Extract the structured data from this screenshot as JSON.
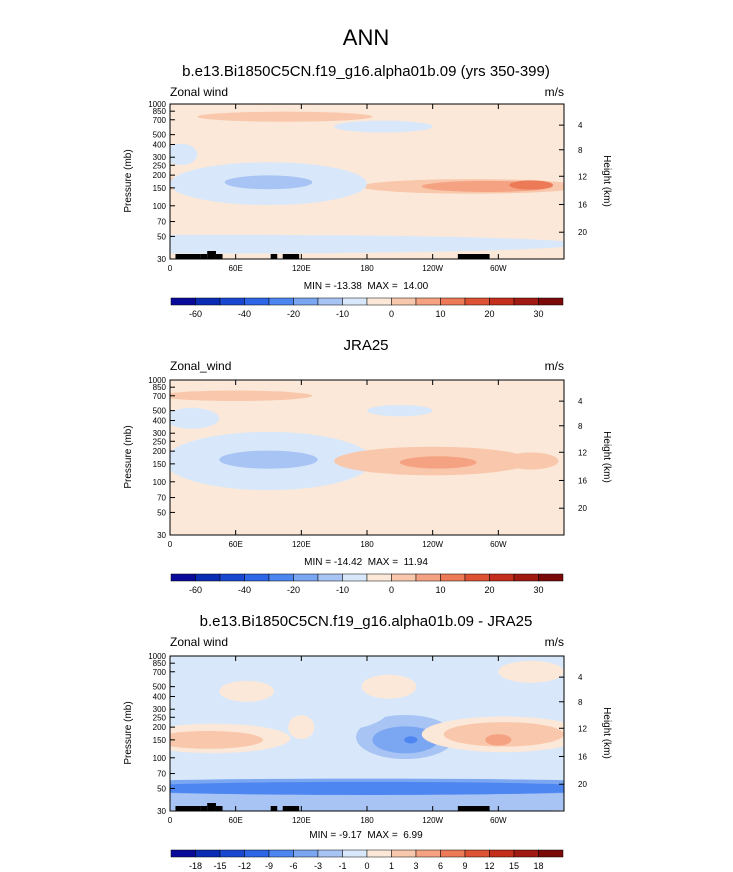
{
  "figure_title": "ANN",
  "chart_data": [
    {
      "type": "heatmap",
      "title": "b.e13.Bi1850C5CN.f19_g16.alpha01b.09 (yrs 350-399)",
      "left_label": "Zonal wind",
      "units": "m/s",
      "ylabel": "Pressure (mb)",
      "y2label": "Height (km)",
      "xlabel": "",
      "x_ticks": [
        "0",
        "60E",
        "120E",
        "180",
        "120W",
        "60W"
      ],
      "x_tick_values": [
        0,
        60,
        120,
        180,
        240,
        300
      ],
      "xlim": [
        0,
        360
      ],
      "y_ticks": [
        "30",
        "50",
        "70",
        "100",
        "150",
        "200",
        "250",
        "300",
        "400",
        "500",
        "700",
        "850",
        "1000"
      ],
      "y_tick_values": [
        30,
        50,
        70,
        100,
        150,
        200,
        250,
        300,
        400,
        500,
        700,
        850,
        1000
      ],
      "ylim": [
        1000,
        30
      ],
      "y2_ticks": [
        "4",
        "8",
        "12",
        "16",
        "20"
      ],
      "y2_tick_values": [
        4,
        8,
        12,
        16,
        20
      ],
      "stats": "MIN = -13.38  MAX =  14.00",
      "min": -13.38,
      "max": 14.0,
      "colorbar_levels": [
        "-60",
        "-40",
        "-20",
        "-10",
        "0",
        "10",
        "20",
        "30"
      ],
      "colorbar_bins": 16,
      "terrain": true,
      "regions": [
        {
          "level": 0.5,
          "lon": 0,
          "lat": 0,
          "ax": 1,
          "ay": 1
        },
        {
          "level": 0.5,
          "lon": 130,
          "lat": 60,
          "ax": 230,
          "ay": 520
        },
        {
          "level": 0.5,
          "lon": 130,
          "lat": 590,
          "ax": 220,
          "ay": 200
        },
        {
          "level": 1.5,
          "lon": 275,
          "lat": 155,
          "ax": 100,
          "ay": 30
        },
        {
          "level": 1.5,
          "lon": 10,
          "lat": 165,
          "ax": 40,
          "ay": 25
        },
        {
          "level": 1.5,
          "lon": 105,
          "lat": 750,
          "ax": 80,
          "ay": 70
        },
        {
          "level": 2.5,
          "lon": 290,
          "lat": 155,
          "ax": 60,
          "ay": 18
        },
        {
          "level": 3.5,
          "lon": 330,
          "lat": 160,
          "ax": 20,
          "ay": 12
        },
        {
          "level": -0.5,
          "lon": 55,
          "lat": 42,
          "ax": 320,
          "ay": 12
        },
        {
          "level": -0.5,
          "lon": 90,
          "lat": 165,
          "ax": 90,
          "ay": 130
        },
        {
          "level": -0.5,
          "lon": 10,
          "lat": 320,
          "ax": 15,
          "ay": 110
        },
        {
          "level": -0.5,
          "lon": 195,
          "lat": 600,
          "ax": 45,
          "ay": 80
        },
        {
          "level": -1.5,
          "lon": 90,
          "lat": 170,
          "ax": 40,
          "ay": 30
        }
      ]
    },
    {
      "type": "heatmap",
      "title": "JRA25",
      "left_label": "Zonal_wind",
      "units": "m/s",
      "ylabel": "Pressure (mb)",
      "y2label": "Height (km)",
      "xlabel": "",
      "x_ticks": [
        "0",
        "60E",
        "120E",
        "180",
        "120W",
        "60W"
      ],
      "x_tick_values": [
        0,
        60,
        120,
        180,
        240,
        300
      ],
      "xlim": [
        0,
        360
      ],
      "y_ticks": [
        "30",
        "50",
        "70",
        "100",
        "150",
        "200",
        "250",
        "300",
        "400",
        "500",
        "700",
        "850",
        "1000"
      ],
      "y_tick_values": [
        30,
        50,
        70,
        100,
        150,
        200,
        250,
        300,
        400,
        500,
        700,
        850,
        1000
      ],
      "ylim": [
        1000,
        30
      ],
      "y2_ticks": [
        "4",
        "8",
        "12",
        "16",
        "20"
      ],
      "y2_tick_values": [
        4,
        8,
        12,
        16,
        20
      ],
      "stats": "MIN = -14.42  MAX =  11.94",
      "min": -14.42,
      "max": 11.94,
      "colorbar_levels": [
        "-60",
        "-40",
        "-20",
        "-10",
        "0",
        "10",
        "20",
        "30"
      ],
      "colorbar_bins": 16,
      "terrain": false,
      "regions": [
        {
          "level": 0.5,
          "lon": 0,
          "lat": 0,
          "ax": 1,
          "ay": 1
        },
        {
          "level": -0.5,
          "lon": 90,
          "lat": 160,
          "ax": 95,
          "ay": 170
        },
        {
          "level": -0.5,
          "lon": 20,
          "lat": 420,
          "ax": 25,
          "ay": 140
        },
        {
          "level": -0.5,
          "lon": 210,
          "lat": 500,
          "ax": 30,
          "ay": 60
        },
        {
          "level": -1.5,
          "lon": 90,
          "lat": 165,
          "ax": 45,
          "ay": 45
        },
        {
          "level": 1.5,
          "lon": 240,
          "lat": 160,
          "ax": 90,
          "ay": 80
        },
        {
          "level": 1.5,
          "lon": 330,
          "lat": 160,
          "ax": 25,
          "ay": 40
        },
        {
          "level": 1.5,
          "lon": 60,
          "lat": 700,
          "ax": 70,
          "ay": 70
        },
        {
          "level": 2.5,
          "lon": 245,
          "lat": 155,
          "ax": 35,
          "ay": 22
        }
      ]
    },
    {
      "type": "heatmap",
      "title": "b.e13.Bi1850C5CN.f19_g16.alpha01b.09 - JRA25",
      "left_label": "Zonal wind",
      "units": "m/s",
      "ylabel": "Pressure (mb)",
      "y2label": "Height (km)",
      "xlabel": "",
      "x_ticks": [
        "0",
        "60E",
        "120E",
        "180",
        "120W",
        "60W"
      ],
      "x_tick_values": [
        0,
        60,
        120,
        180,
        240,
        300
      ],
      "xlim": [
        0,
        360
      ],
      "y_ticks": [
        "30",
        "50",
        "70",
        "100",
        "150",
        "200",
        "250",
        "300",
        "400",
        "500",
        "700",
        "850",
        "1000"
      ],
      "y_tick_values": [
        30,
        50,
        70,
        100,
        150,
        200,
        250,
        300,
        400,
        500,
        700,
        850,
        1000
      ],
      "ylim": [
        1000,
        30
      ],
      "y2_ticks": [
        "4",
        "8",
        "12",
        "16",
        "20"
      ],
      "y2_tick_values": [
        4,
        8,
        12,
        16,
        20
      ],
      "stats": "MIN = -9.17  MAX =  6.99",
      "min": -9.17,
      "max": 6.99,
      "colorbar_levels": [
        "-18",
        "-15",
        "-12",
        "-9",
        "-6",
        "-3",
        "-1",
        "0",
        "1",
        "3",
        "6",
        "9",
        "12",
        "15",
        "18"
      ],
      "colorbar_bins": 16,
      "terrain": true,
      "regions": [
        {
          "level": -0.5,
          "lon": 0,
          "lat": 0,
          "ax": 1,
          "ay": 1
        },
        {
          "level": -2,
          "lon": 180,
          "lat": 40,
          "ax": 330,
          "ay": 22
        },
        {
          "level": -3,
          "lon": 180,
          "lat": 52,
          "ax": 300,
          "ay": 12
        },
        {
          "level": -4,
          "lon": 180,
          "lat": 50,
          "ax": 230,
          "ay": 8
        },
        {
          "level": -2,
          "lon": 215,
          "lat": 160,
          "ax": 45,
          "ay": 130
        },
        {
          "level": -3,
          "lon": 215,
          "lat": 150,
          "ax": 30,
          "ay": 70
        },
        {
          "level": -4,
          "lon": 220,
          "lat": 150,
          "ax": 6,
          "ay": 4
        },
        {
          "level": -1,
          "lon": 140,
          "lat": 300,
          "ax": 60,
          "ay": 250
        },
        {
          "level": 0.5,
          "lon": 40,
          "lat": 155,
          "ax": 70,
          "ay": 80
        },
        {
          "level": 1.5,
          "lon": 35,
          "lat": 150,
          "ax": 50,
          "ay": 40
        },
        {
          "level": 0.5,
          "lon": 305,
          "lat": 170,
          "ax": 75,
          "ay": 110
        },
        {
          "level": 1.5,
          "lon": 305,
          "lat": 170,
          "ax": 55,
          "ay": 70
        },
        {
          "level": 2.5,
          "lon": 300,
          "lat": 150,
          "ax": 12,
          "ay": 18
        },
        {
          "level": 0.5,
          "lon": 120,
          "lat": 200,
          "ax": 12,
          "ay": 80
        },
        {
          "level": 0.5,
          "lon": 200,
          "lat": 500,
          "ax": 25,
          "ay": 200
        },
        {
          "level": 0.5,
          "lon": 70,
          "lat": 450,
          "ax": 25,
          "ay": 150
        },
        {
          "level": 0.5,
          "lon": 330,
          "lat": 700,
          "ax": 30,
          "ay": 250
        }
      ]
    }
  ],
  "palette": {
    "diverging": [
      "#0a0a9a",
      "#0a2cb4",
      "#1848d0",
      "#2d66e6",
      "#4d86f0",
      "#7aa6f2",
      "#a8c4f4",
      "#d8e8fa",
      "#fce8d8",
      "#f9c8ac",
      "#f4a282",
      "#ec7a56",
      "#de5234",
      "#c42e1c",
      "#a01a12",
      "#7a0a0a"
    ],
    "terrain": "#000000",
    "text": "#000000"
  }
}
